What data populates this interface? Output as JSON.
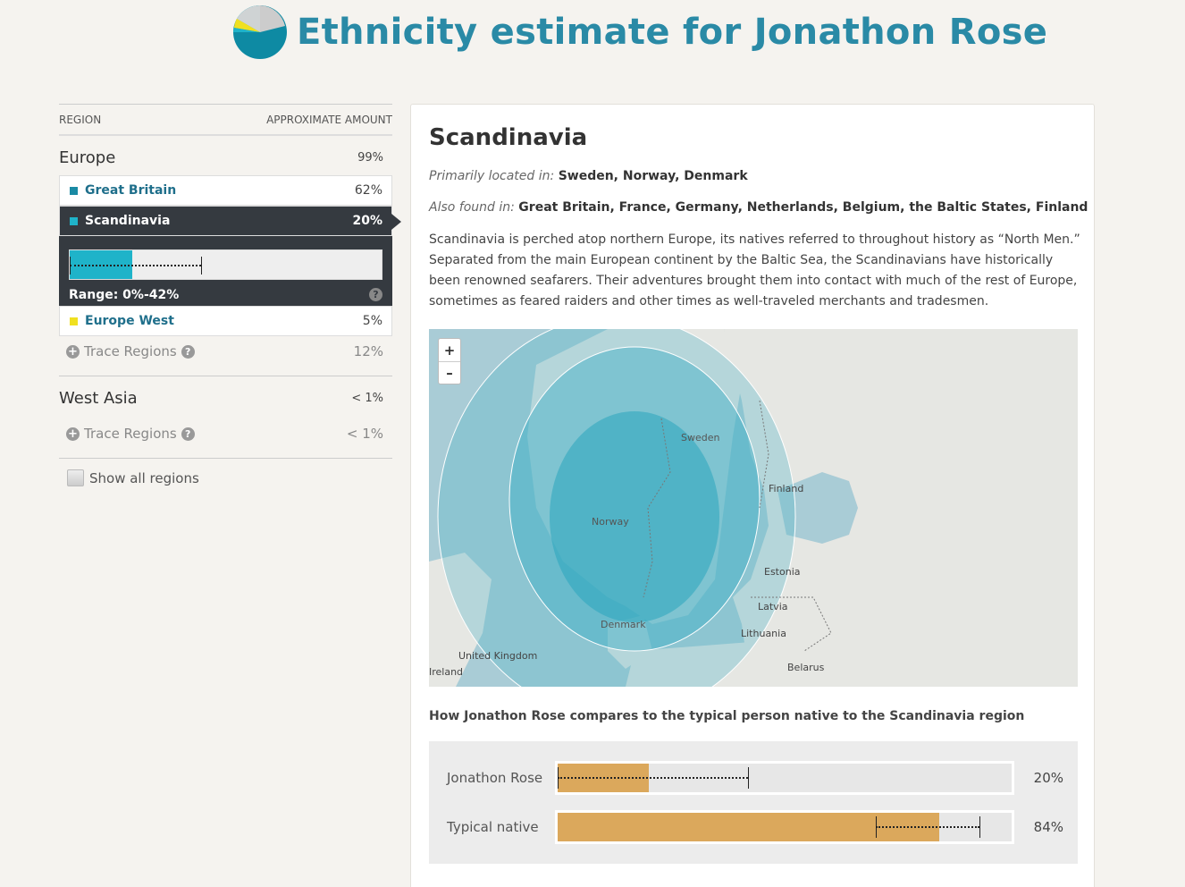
{
  "page": {
    "title": "Ethnicity estimate for Jonathon Rose"
  },
  "colors": {
    "accent": "#2a8aa6",
    "great_britain": "#1a8aa4",
    "scandinavia": "#1fb3c9",
    "europe_west": "#f0e020",
    "compare_bar": "#dba85c"
  },
  "table": {
    "col_region": "REGION",
    "col_amount": "APPROXIMATE AMOUNT",
    "groups": [
      {
        "name": "Europe",
        "pct": "99%",
        "regions": [
          {
            "name": "Great Britain",
            "pct": "62%"
          },
          {
            "name": "Scandinavia",
            "pct": "20%",
            "range_label": "Range: 0%-42%",
            "value": 20,
            "range_min": 0,
            "range_max": 42
          },
          {
            "name": "Europe West",
            "pct": "5%"
          }
        ],
        "trace_label": "Trace Regions",
        "trace_pct": "12%"
      },
      {
        "name": "West Asia",
        "pct": "< 1%",
        "trace_label": "Trace Regions",
        "trace_pct": "< 1%"
      }
    ],
    "show_all": "Show all regions"
  },
  "detail": {
    "title": "Scandinavia",
    "primarily_label": "Primarily located in:",
    "primarily_value": "Sweden, Norway, Denmark",
    "also_label": "Also found in:",
    "also_value": "Great Britain, France, Germany, Netherlands, Belgium, the Baltic States, Finland",
    "description": "Scandinavia is perched atop northern Europe, its natives referred to throughout history as “North Men.” Separated from the main European continent by the Baltic Sea, the Scandinavians have historically been renowned seafarers. Their adventures brought them into contact with much of the rest of Europe, sometimes as feared raiders and other times as well-traveled merchants and tradesmen.",
    "map": {
      "zoom_in": "+",
      "zoom_out": "–",
      "labels": [
        "Sweden",
        "Finland",
        "Norway",
        "Estonia",
        "Latvia",
        "Denmark",
        "Lithuania",
        "United Kingdom",
        "Ireland",
        "Belarus"
      ]
    },
    "compare_heading": "How Jonathon Rose compares to the typical person native to the Scandinavia region",
    "compare": [
      {
        "name": "Jonathon Rose",
        "pct": "20%",
        "value": 20,
        "range_min": 0,
        "range_max": 42
      },
      {
        "name": "Typical native",
        "pct": "84%",
        "value": 84,
        "range_min": 70,
        "range_max": 93
      }
    ]
  }
}
